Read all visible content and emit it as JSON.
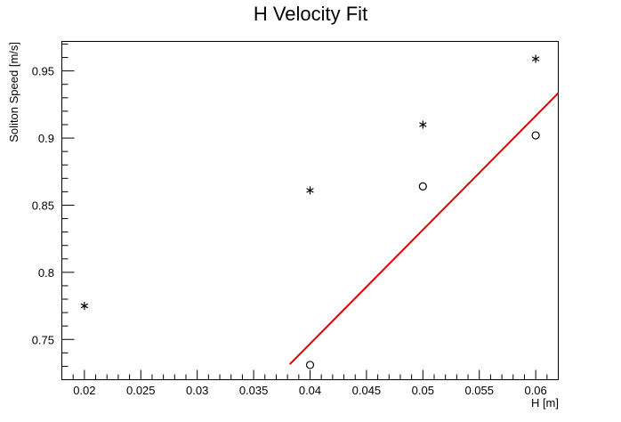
{
  "chart_data": {
    "type": "scatter",
    "title": "H Velocity Fit",
    "xlabel": "H [m]",
    "ylabel": "Soliton Speed [m/s]",
    "xlim": [
      0.018,
      0.062
    ],
    "ylim": [
      0.72,
      0.972
    ],
    "grid": false,
    "x_ticks": [
      0.02,
      0.025,
      0.03,
      0.035,
      0.04,
      0.045,
      0.05,
      0.055,
      0.06
    ],
    "x_tick_labels": [
      "0.02",
      "0.025",
      "0.03",
      "0.035",
      "0.04",
      "0.045",
      "0.05",
      "0.055",
      "0.06"
    ],
    "y_ticks": [
      0.75,
      0.8,
      0.85,
      0.9,
      0.95
    ],
    "y_tick_labels": [
      "0.75",
      "0.8",
      "0.85",
      "0.9",
      "0.95"
    ],
    "series": [
      {
        "marker": "asterisk",
        "color": "#000000",
        "points": [
          {
            "x": 0.02,
            "y": 0.775
          },
          {
            "x": 0.04,
            "y": 0.861
          },
          {
            "x": 0.05,
            "y": 0.91
          },
          {
            "x": 0.06,
            "y": 0.959
          }
        ]
      },
      {
        "marker": "open-circle",
        "color": "#000000",
        "points": [
          {
            "x": 0.04,
            "y": 0.731
          },
          {
            "x": 0.05,
            "y": 0.864
          },
          {
            "x": 0.06,
            "y": 0.902
          }
        ]
      },
      {
        "type": "line",
        "color": "#e00000",
        "points": [
          {
            "x": 0.0382,
            "y": 0.7315
          },
          {
            "x": 0.062,
            "y": 0.9335
          }
        ]
      }
    ]
  }
}
